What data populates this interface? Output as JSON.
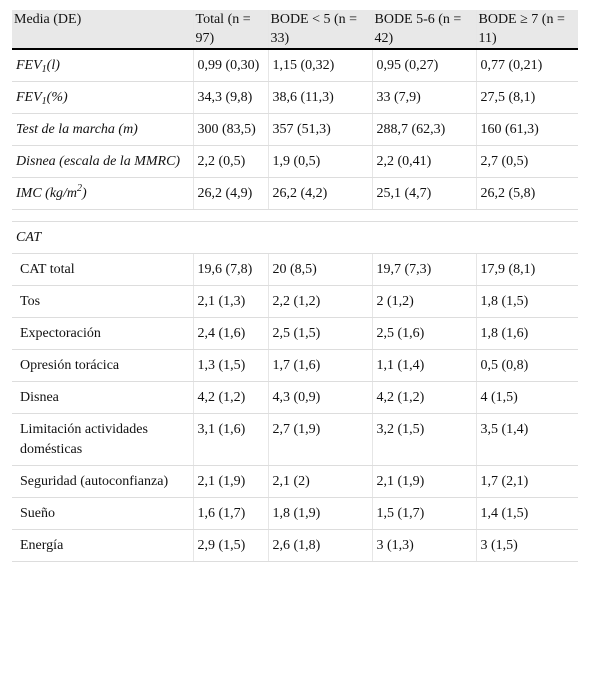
{
  "table": {
    "header": [
      "Media (DE)",
      "Total (n = 97)",
      "BODE < 5 (n = 33)",
      "BODE 5-6 (n = 42)",
      "BODE ≥ 7 (n = 11)"
    ],
    "groups": [
      {
        "rows": [
          {
            "label": {
              "text": "FEV",
              "sub": "1",
              "rest": "(l)"
            },
            "cells": [
              "0,99 (0,30)",
              "1,15 (0,32)",
              "0,95 (0,27)",
              "0,77 (0,21)"
            ]
          },
          {
            "label": {
              "text": "FEV",
              "sub": "1",
              "rest": "(%)"
            },
            "cells": [
              "34,3 (9,8)",
              "38,6 (11,3)",
              "33 (7,9)",
              "27,5 (8,1)"
            ]
          },
          {
            "label": {
              "text": "Test de la marcha (m)"
            },
            "cells": [
              "300 (83,5)",
              "357 (51,3)",
              "288,7 (62,3)",
              "160 (61,3)"
            ]
          },
          {
            "label": {
              "text": "Disnea (escala de la MMRC)"
            },
            "cells": [
              "2,2 (0,5)",
              "1,9 (0,5)",
              "2,2 (0,41)",
              "2,7 (0,5)"
            ]
          },
          {
            "label": {
              "text": "IMC (kg/m",
              "sup": "2",
              "rest": ")"
            },
            "cells": [
              "26,2 (4,9)",
              "26,2 (4,2)",
              "25,1 (4,7)",
              "26,2 (5,8)"
            ]
          }
        ]
      },
      {
        "title": "CAT",
        "rows": [
          {
            "label": {
              "text": "CAT total"
            },
            "cells": [
              "19,6 (7,8)",
              "20 (8,5)",
              "19,7 (7,3)",
              "17,9 (8,1)"
            ]
          },
          {
            "label": {
              "text": "Tos"
            },
            "cells": [
              "2,1 (1,3)",
              "2,2 (1,2)",
              "2 (1,2)",
              "1,8 (1,5)"
            ]
          },
          {
            "label": {
              "text": "Expectoración"
            },
            "cells": [
              "2,4 (1,6)",
              "2,5 (1,5)",
              "2,5 (1,6)",
              "1,8 (1,6)"
            ]
          },
          {
            "label": {
              "text": "Opresión torácica"
            },
            "cells": [
              "1,3 (1,5)",
              "1,7 (1,6)",
              "1,1 (1,4)",
              "0,5 (0,8)"
            ]
          },
          {
            "label": {
              "text": "Disnea"
            },
            "cells": [
              "4,2 (1,2)",
              "4,3 (0,9)",
              "4,2 (1,2)",
              "4 (1,5)"
            ]
          },
          {
            "label": {
              "text": "Limitación actividades domésticas"
            },
            "cells": [
              "3,1 (1,6)",
              "2,7 (1,9)",
              "3,2 (1,5)",
              "3,5 (1,4)"
            ]
          },
          {
            "label": {
              "text": "Seguridad (autoconfianza)"
            },
            "cells": [
              "2,1 (1,9)",
              "2,1 (2)",
              "2,1 (1,9)",
              "1,7 (2,1)"
            ]
          },
          {
            "label": {
              "text": "Sueño"
            },
            "cells": [
              "1,6 (1,7)",
              "1,8 (1,9)",
              "1,5 (1,7)",
              "1,4 (1,5)"
            ]
          },
          {
            "label": {
              "text": "Energía"
            },
            "cells": [
              "2,9 (1,5)",
              "2,6 (1,8)",
              "3 (1,3)",
              "3 (1,5)"
            ]
          }
        ]
      }
    ]
  }
}
